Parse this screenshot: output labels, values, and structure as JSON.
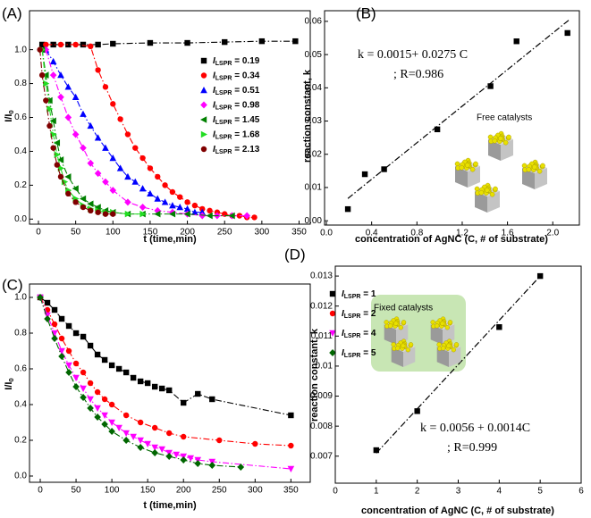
{
  "chart_data": [
    {
      "type": "scatter",
      "panel": "(A)",
      "xlabel": "t (time,min)",
      "ylabel": "I/I0",
      "xlim": [
        -12,
        365
      ],
      "xticks": [
        0,
        50,
        100,
        150,
        200,
        250,
        300,
        350
      ],
      "ylim": [
        -0.03,
        1.23
      ],
      "yticks": [
        {
          "value": 0,
          "label": "0.0"
        },
        0.2,
        0.4,
        0.6,
        0.8,
        {
          "value": 1,
          "label": "1.0"
        }
      ],
      "legend": "upper right",
      "series": [
        {
          "name": "ILSPR = 0.19",
          "color": "#000000",
          "marker": "square",
          "x": [
            5,
            20,
            40,
            60,
            80,
            100,
            150,
            200,
            250,
            300,
            345
          ],
          "values": [
            1.03,
            1.03,
            1.03,
            1.03,
            1.03,
            1.035,
            1.04,
            1.04,
            1.045,
            1.05,
            1.05
          ]
        },
        {
          "name": "ILSPR = 0.34",
          "color": "#ff0000",
          "marker": "circle",
          "x": [
            10,
            30,
            50,
            70,
            80,
            90,
            100,
            110,
            120,
            130,
            140,
            150,
            160,
            170,
            180,
            190,
            200,
            210,
            220,
            230,
            240,
            250,
            260,
            270,
            280,
            290
          ],
          "values": [
            1.03,
            1.03,
            1.03,
            1.02,
            0.88,
            0.78,
            0.68,
            0.59,
            0.5,
            0.42,
            0.36,
            0.3,
            0.25,
            0.2,
            0.16,
            0.13,
            0.1,
            0.08,
            0.06,
            0.05,
            0.04,
            0.03,
            0.02,
            0.02,
            0.01,
            0.01
          ]
        },
        {
          "name": "ILSPR = 0.51",
          "color": "#0000ff",
          "marker": "triangle-up",
          "x": [
            10,
            20,
            30,
            40,
            50,
            60,
            70,
            80,
            90,
            100,
            110,
            120,
            130,
            140,
            150,
            160,
            170,
            180,
            190,
            200,
            210,
            220
          ],
          "values": [
            1.0,
            0.93,
            0.85,
            0.78,
            0.72,
            0.62,
            0.55,
            0.48,
            0.42,
            0.36,
            0.3,
            0.25,
            0.22,
            0.18,
            0.15,
            0.12,
            0.1,
            0.08,
            0.07,
            0.06,
            0.04,
            0.04
          ]
        },
        {
          "name": "ILSPR = 0.98",
          "color": "#ff00ff",
          "marker": "diamond",
          "x": [
            10,
            20,
            30,
            40,
            50,
            60,
            70,
            80,
            90,
            100,
            120,
            140,
            160,
            180,
            200,
            220,
            240,
            260,
            280
          ],
          "values": [
            1.0,
            0.85,
            0.72,
            0.6,
            0.5,
            0.42,
            0.33,
            0.27,
            0.22,
            0.17,
            0.1,
            0.07,
            0.05,
            0.04,
            0.03,
            0.02,
            0.02,
            0.02,
            0.02
          ]
        },
        {
          "name": "ILSPR = 1.45",
          "color": "#008000",
          "marker": "triangle-left",
          "x": [
            5,
            10,
            15,
            20,
            25,
            30,
            40,
            50,
            60,
            70,
            80,
            90,
            100,
            120,
            140,
            160,
            180,
            200,
            230,
            260
          ],
          "values": [
            1.0,
            0.85,
            0.7,
            0.58,
            0.45,
            0.35,
            0.25,
            0.18,
            0.12,
            0.09,
            0.07,
            0.05,
            0.04,
            0.03,
            0.03,
            0.03,
            0.03,
            0.03,
            0.02,
            0.02
          ]
        },
        {
          "name": "ILSPR = 1.68",
          "color": "#22dd22",
          "marker": "triangle-right",
          "x": [
            5,
            10,
            15,
            20,
            25,
            30,
            35,
            40,
            50,
            60,
            70,
            80,
            90,
            100,
            120,
            140
          ],
          "values": [
            1.0,
            0.8,
            0.65,
            0.5,
            0.38,
            0.3,
            0.22,
            0.17,
            0.12,
            0.08,
            0.06,
            0.05,
            0.04,
            0.04,
            0.03,
            0.03
          ]
        },
        {
          "name": "ILSPR = 2.13",
          "color": "#800000",
          "marker": "circle",
          "x": [
            2,
            5,
            10,
            15,
            20,
            25,
            30,
            40,
            50,
            60,
            70,
            80,
            90,
            100
          ],
          "values": [
            1.0,
            0.85,
            0.7,
            0.55,
            0.42,
            0.32,
            0.25,
            0.15,
            0.1,
            0.07,
            0.05,
            0.04,
            0.03,
            0.03
          ]
        }
      ]
    },
    {
      "type": "scatter",
      "panel": "(B)",
      "xlabel": "concentration of AgNC (C, # of substrate)",
      "ylabel": "reaction constant, k",
      "xlim": [
        -0.016,
        2.235
      ],
      "xticks": [
        {
          "value": 0,
          "label": "0.0"
        },
        0.4,
        0.8,
        1.2,
        1.6,
        {
          "value": 2,
          "label": "2.0"
        }
      ],
      "ylim": [
        -0.0013,
        0.0632
      ],
      "yticks": [
        {
          "value": 0,
          "label": "0.00"
        },
        0.01,
        0.02,
        0.03,
        0.04,
        0.05,
        0.06
      ],
      "annotations": [
        "k = 0.0015+ 0.0275 C",
        "; R=0.986",
        "Free catalysts"
      ],
      "series": [
        {
          "color": "#000000",
          "marker": "square",
          "x": [
            0.19,
            0.34,
            0.51,
            0.98,
            1.45,
            1.68,
            2.13
          ],
          "values": [
            0.0035,
            0.014,
            0.0155,
            0.0275,
            0.0405,
            0.054,
            0.0565
          ]
        }
      ],
      "fit": {
        "x": [
          0.19,
          2.15
        ],
        "values": [
          0.0067,
          0.0606
        ]
      }
    },
    {
      "type": "scatter",
      "panel": "(C)",
      "xlabel": "t (time,min)",
      "ylabel": "I/I0",
      "xlim": [
        -15,
        377
      ],
      "xticks": [
        0,
        50,
        100,
        150,
        200,
        250,
        300,
        350
      ],
      "ylim": [
        -0.035,
        1.075
      ],
      "yticks": [
        {
          "value": 0,
          "label": "0.0"
        },
        0.2,
        0.4,
        0.6,
        0.8,
        {
          "value": 1,
          "label": "1.0"
        }
      ],
      "legend": "outside right",
      "series": [
        {
          "name": "ILSPR = 1",
          "color": "#000000",
          "marker": "square",
          "x": [
            0,
            10,
            20,
            30,
            40,
            50,
            60,
            70,
            80,
            90,
            100,
            110,
            120,
            130,
            140,
            150,
            160,
            170,
            180,
            200,
            220,
            240,
            350
          ],
          "values": [
            1.0,
            0.97,
            0.93,
            0.88,
            0.84,
            0.8,
            0.78,
            0.73,
            0.68,
            0.65,
            0.62,
            0.6,
            0.58,
            0.55,
            0.53,
            0.52,
            0.5,
            0.49,
            0.48,
            0.41,
            0.46,
            0.43,
            0.34
          ]
        },
        {
          "name": "ILSPR = 2",
          "color": "#ff0000",
          "marker": "circle",
          "x": [
            0,
            10,
            20,
            30,
            40,
            50,
            60,
            70,
            80,
            90,
            100,
            120,
            140,
            160,
            180,
            200,
            250,
            300,
            350
          ],
          "values": [
            1.0,
            0.93,
            0.85,
            0.77,
            0.7,
            0.63,
            0.58,
            0.52,
            0.47,
            0.43,
            0.4,
            0.34,
            0.3,
            0.27,
            0.24,
            0.22,
            0.2,
            0.18,
            0.17
          ]
        },
        {
          "name": "ILSPR = 4",
          "color": "#ff00ff",
          "marker": "triangle-down",
          "x": [
            0,
            10,
            20,
            30,
            40,
            50,
            60,
            70,
            80,
            90,
            100,
            110,
            120,
            130,
            140,
            150,
            160,
            170,
            180,
            190,
            200,
            210,
            220,
            240,
            350
          ],
          "values": [
            1.0,
            0.9,
            0.8,
            0.7,
            0.62,
            0.55,
            0.49,
            0.43,
            0.38,
            0.34,
            0.3,
            0.27,
            0.24,
            0.22,
            0.2,
            0.18,
            0.16,
            0.15,
            0.13,
            0.12,
            0.11,
            0.1,
            0.09,
            0.08,
            0.04
          ]
        },
        {
          "name": "ILSPR = 5",
          "color": "#006600",
          "marker": "diamond",
          "x": [
            0,
            10,
            20,
            30,
            40,
            50,
            60,
            70,
            80,
            90,
            100,
            120,
            140,
            160,
            180,
            200,
            220,
            240,
            280
          ],
          "values": [
            1.0,
            0.88,
            0.77,
            0.67,
            0.58,
            0.5,
            0.44,
            0.38,
            0.33,
            0.29,
            0.25,
            0.2,
            0.16,
            0.13,
            0.11,
            0.09,
            0.07,
            0.06,
            0.05
          ]
        }
      ]
    },
    {
      "type": "scatter",
      "panel": "(D)",
      "xlabel": "concentration of AgNC (C, # of substrate)",
      "ylabel": "reaction constant, k",
      "xlim": [
        0,
        6
      ],
      "xticks": [
        0,
        1,
        2,
        3,
        4,
        5,
        6
      ],
      "ylim": [
        0.0061,
        0.01333
      ],
      "yticks": [
        0.007,
        0.008,
        0.009,
        0.01,
        0.011,
        0.012,
        0.013
      ],
      "annotations": [
        "Fixed catalysts",
        "k = 0.0056 + 0.0014C",
        "; R=0.999"
      ],
      "series": [
        {
          "color": "#000000",
          "marker": "square",
          "x": [
            1,
            2,
            4,
            5
          ],
          "values": [
            0.0072,
            0.0085,
            0.0113,
            0.013
          ]
        }
      ],
      "fit": {
        "x": [
          1,
          5
        ],
        "values": [
          0.0071,
          0.013
        ]
      }
    }
  ]
}
